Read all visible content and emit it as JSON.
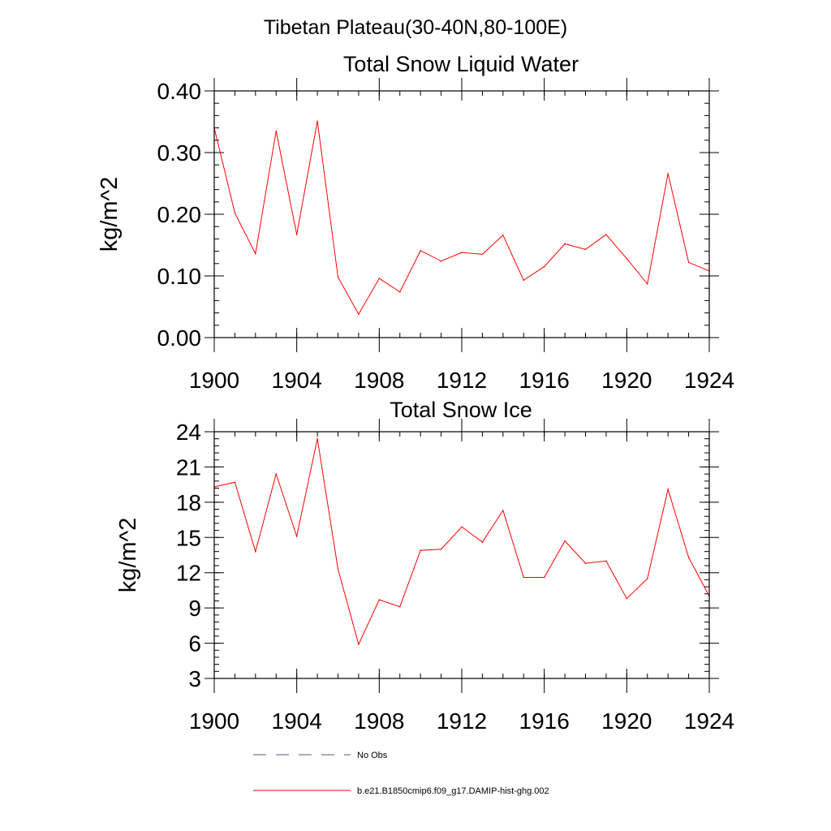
{
  "figure": {
    "suptitle": "Tibetan Plateau(30-40N,80-100E)",
    "colors": {
      "series": "#ff0000",
      "obs": "#5a5a8a",
      "axes": "#000000"
    }
  },
  "chart_data": [
    {
      "type": "line",
      "title": "Total Snow Liquid Water",
      "xlabel": "",
      "ylabel": "kg/m^2",
      "xlim": [
        1900,
        1924
      ],
      "ylim": [
        0,
        0.4
      ],
      "xticks": [
        1900,
        1904,
        1908,
        1912,
        1916,
        1920,
        1924
      ],
      "xtick_labels": [
        "1900",
        "1904",
        "1908",
        "1912",
        "1916",
        "1920",
        "1924"
      ],
      "yticks": [
        0,
        0.1,
        0.2,
        0.3,
        0.4
      ],
      "ytick_labels": [
        "0.00",
        "0.10",
        "0.20",
        "0.30",
        "0.40"
      ],
      "y_minor_step": 0.02,
      "x_minor_step": 1,
      "grid": false,
      "x": [
        1900,
        1901,
        1902,
        1903,
        1904,
        1905,
        1906,
        1907,
        1908,
        1909,
        1910,
        1911,
        1912,
        1913,
        1914,
        1915,
        1916,
        1917,
        1918,
        1919,
        1920,
        1921,
        1922,
        1923,
        1924
      ],
      "series": [
        {
          "name": "b.e21.B1850cmip6.f09_g17.DAMIP-hist-ghg.002",
          "color": "#ff0000",
          "values": [
            0.34,
            0.202,
            0.136,
            0.335,
            0.167,
            0.351,
            0.098,
            0.038,
            0.096,
            0.074,
            0.141,
            0.124,
            0.138,
            0.135,
            0.166,
            0.093,
            0.115,
            0.152,
            0.143,
            0.167,
            0.128,
            0.087,
            0.266,
            0.122,
            0.108
          ]
        }
      ]
    },
    {
      "type": "line",
      "title": "Total Snow Ice",
      "xlabel": "",
      "ylabel": "kg/m^2",
      "xlim": [
        1900,
        1924
      ],
      "ylim": [
        3,
        24
      ],
      "xticks": [
        1900,
        1904,
        1908,
        1912,
        1916,
        1920,
        1924
      ],
      "xtick_labels": [
        "1900",
        "1904",
        "1908",
        "1912",
        "1916",
        "1920",
        "1924"
      ],
      "yticks": [
        3,
        6,
        9,
        12,
        15,
        18,
        21,
        24
      ],
      "ytick_labels": [
        "3",
        "6",
        "9",
        "12",
        "15",
        "18",
        "21",
        "24"
      ],
      "y_minor_step": 0.6,
      "x_minor_step": 1,
      "grid": false,
      "x": [
        1900,
        1901,
        1902,
        1903,
        1904,
        1905,
        1906,
        1907,
        1908,
        1909,
        1910,
        1911,
        1912,
        1913,
        1914,
        1915,
        1916,
        1917,
        1918,
        1919,
        1920,
        1921,
        1922,
        1923,
        1924
      ],
      "series": [
        {
          "name": "b.e21.B1850cmip6.f09_g17.DAMIP-hist-ghg.002",
          "color": "#ff0000",
          "values": [
            19.3,
            19.7,
            13.8,
            20.4,
            15.1,
            23.4,
            12.3,
            5.9,
            9.7,
            9.1,
            13.9,
            14.0,
            15.9,
            14.6,
            17.3,
            11.6,
            11.6,
            14.7,
            12.8,
            13.0,
            9.8,
            11.5,
            19.1,
            13.3,
            10.0
          ]
        }
      ]
    }
  ],
  "legend": {
    "position": "bottom",
    "items": [
      {
        "label": "No Obs",
        "style": "dashed"
      },
      {
        "label": "b.e21.B1850cmip6.f09_g17.DAMIP-hist-ghg.002",
        "style": "solid"
      }
    ]
  }
}
